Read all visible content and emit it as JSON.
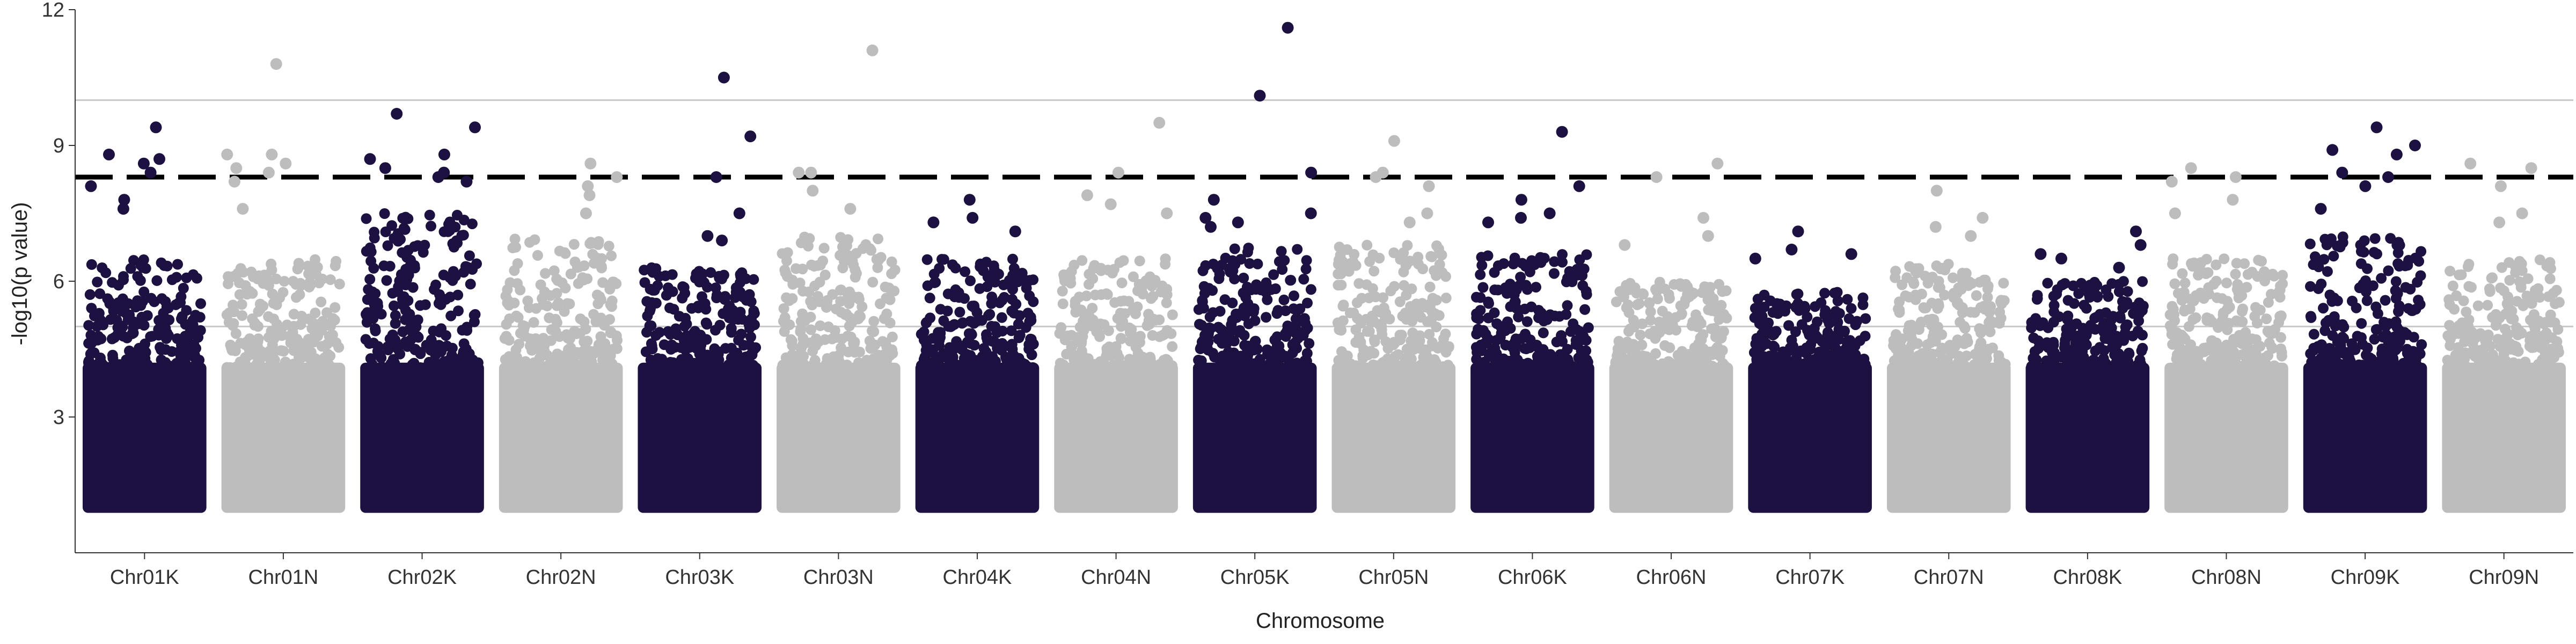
{
  "chart_data": {
    "type": "scatter",
    "subtype": "manhattan",
    "title": "",
    "xlabel": "Chromosome",
    "ylabel": "-log10(p value)",
    "ylim": [
      0,
      12
    ],
    "yticks": [
      3,
      6,
      9,
      12
    ],
    "grid": "horizontal reference lines at 5 and 10",
    "reference_lines": [
      {
        "y": 5,
        "style": "solid",
        "color": "#c8c8c8"
      },
      {
        "y": 10,
        "style": "solid",
        "color": "#c8c8c8"
      },
      {
        "y": 8.3,
        "style": "dashed",
        "color": "#000000"
      }
    ],
    "colors": {
      "odd": "#1c1140",
      "even": "#bdbdbd"
    },
    "legend": "none",
    "chromosomes": [
      {
        "name": "Chr01K",
        "color": "#1c1140",
        "top_values": [
          9.4,
          8.8,
          8.7,
          8.6,
          8.4,
          8.1,
          7.8,
          7.6
        ],
        "body_max": 6.5
      },
      {
        "name": "Chr01N",
        "color": "#bdbdbd",
        "top_values": [
          10.8,
          8.8,
          8.8,
          8.6,
          8.5,
          8.4,
          8.2,
          7.6
        ],
        "body_max": 6.5
      },
      {
        "name": "Chr02K",
        "color": "#1c1140",
        "top_values": [
          9.7,
          9.4,
          8.8,
          8.7,
          8.5,
          8.4,
          8.3,
          8.2
        ],
        "body_max": 7.5
      },
      {
        "name": "Chr02N",
        "color": "#bdbdbd",
        "top_values": [
          8.6,
          8.3,
          8.1,
          7.9,
          7.5
        ],
        "body_max": 7.0
      },
      {
        "name": "Chr03K",
        "color": "#1c1140",
        "top_values": [
          10.5,
          9.2,
          8.3,
          7.5,
          7.0,
          6.9
        ],
        "body_max": 6.3
      },
      {
        "name": "Chr03N",
        "color": "#bdbdbd",
        "top_values": [
          11.1,
          8.4,
          8.4,
          8.0,
          7.6
        ],
        "body_max": 7.0
      },
      {
        "name": "Chr04K",
        "color": "#1c1140",
        "top_values": [
          7.8,
          7.4,
          7.3,
          7.1
        ],
        "body_max": 6.5
      },
      {
        "name": "Chr04N",
        "color": "#bdbdbd",
        "top_values": [
          9.5,
          8.4,
          7.9,
          7.7,
          7.5
        ],
        "body_max": 6.5
      },
      {
        "name": "Chr05K",
        "color": "#1c1140",
        "top_values": [
          11.6,
          10.1,
          8.4,
          7.8,
          7.5,
          7.4,
          7.3,
          7.2
        ],
        "body_max": 6.8
      },
      {
        "name": "Chr05N",
        "color": "#bdbdbd",
        "top_values": [
          9.1,
          8.4,
          8.3,
          8.1,
          7.5,
          7.3
        ],
        "body_max": 6.8
      },
      {
        "name": "Chr06K",
        "color": "#1c1140",
        "top_values": [
          9.3,
          8.1,
          7.8,
          7.5,
          7.4,
          7.3
        ],
        "body_max": 6.6
      },
      {
        "name": "Chr06N",
        "color": "#bdbdbd",
        "top_values": [
          8.6,
          8.3,
          7.4,
          7.0,
          6.8
        ],
        "body_max": 6.0
      },
      {
        "name": "Chr07K",
        "color": "#1c1140",
        "top_values": [
          7.1,
          6.7,
          6.6,
          6.5
        ],
        "body_max": 5.8
      },
      {
        "name": "Chr07N",
        "color": "#bdbdbd",
        "top_values": [
          8.0,
          7.4,
          7.2,
          7.0
        ],
        "body_max": 6.4
      },
      {
        "name": "Chr08K",
        "color": "#1c1140",
        "top_values": [
          7.1,
          6.8,
          6.6,
          6.5,
          6.3
        ],
        "body_max": 6.0
      },
      {
        "name": "Chr08N",
        "color": "#bdbdbd",
        "top_values": [
          8.5,
          8.3,
          8.2,
          7.8,
          7.5
        ],
        "body_max": 6.5
      },
      {
        "name": "Chr09K",
        "color": "#1c1140",
        "top_values": [
          9.4,
          9.0,
          8.9,
          8.8,
          8.4,
          8.3,
          8.1,
          7.6
        ],
        "body_max": 7.0
      },
      {
        "name": "Chr09N",
        "color": "#bdbdbd",
        "top_values": [
          8.6,
          8.5,
          8.1,
          7.5,
          7.3
        ],
        "body_max": 6.5
      }
    ]
  }
}
